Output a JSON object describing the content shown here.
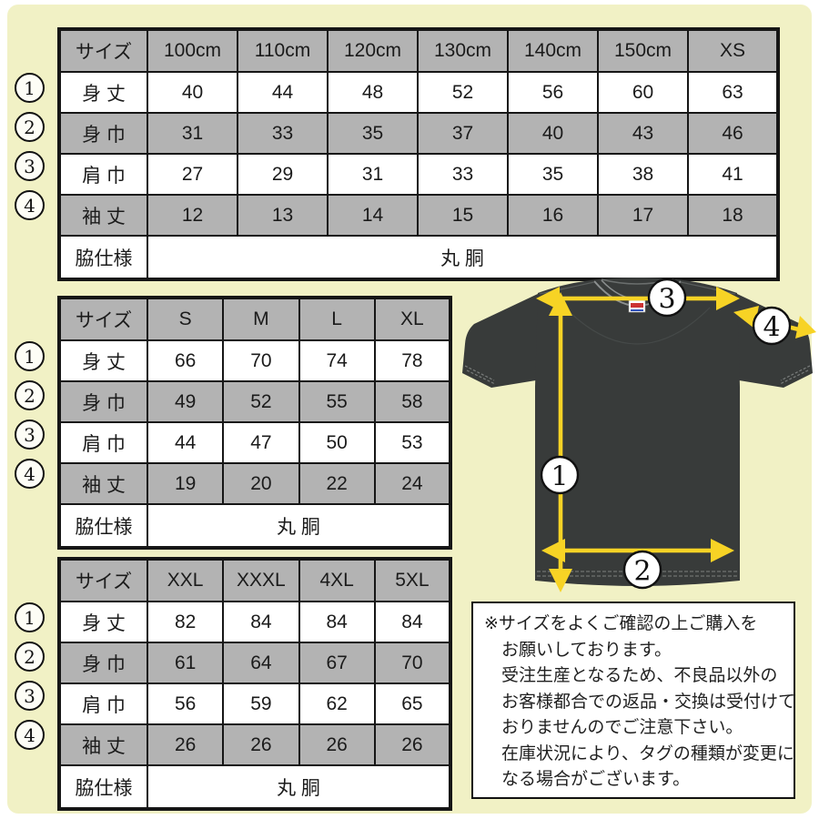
{
  "colors": {
    "background": "#f1f1c5",
    "header_gray": "#b3b3b3",
    "shirt_dark": "#383b3a",
    "arrow_yellow": "#f7d325",
    "tag_red": "#cc3333",
    "tag_blue": "#3355bb"
  },
  "tables": [
    {
      "name": "size-table-kids-xs",
      "header": [
        "サイズ",
        "100cm",
        "110cm",
        "120cm",
        "130cm",
        "140cm",
        "150cm",
        "XS"
      ],
      "rows": [
        {
          "marker": "1",
          "label": "身 丈",
          "values": [
            "40",
            "44",
            "48",
            "52",
            "56",
            "60",
            "63"
          ]
        },
        {
          "marker": "2",
          "label": "身 巾",
          "values": [
            "31",
            "33",
            "35",
            "37",
            "40",
            "43",
            "46"
          ]
        },
        {
          "marker": "3",
          "label": "肩 巾",
          "values": [
            "27",
            "29",
            "31",
            "33",
            "35",
            "38",
            "41"
          ]
        },
        {
          "marker": "4",
          "label": "袖 丈",
          "values": [
            "12",
            "13",
            "14",
            "15",
            "16",
            "17",
            "18"
          ]
        }
      ],
      "footer": {
        "label": "脇仕様",
        "value": "丸 胴"
      }
    },
    {
      "name": "size-table-s-xl",
      "header": [
        "サイズ",
        "S",
        "M",
        "L",
        "XL"
      ],
      "rows": [
        {
          "marker": "1",
          "label": "身 丈",
          "values": [
            "66",
            "70",
            "74",
            "78"
          ]
        },
        {
          "marker": "2",
          "label": "身 巾",
          "values": [
            "49",
            "52",
            "55",
            "58"
          ]
        },
        {
          "marker": "3",
          "label": "肩 巾",
          "values": [
            "44",
            "47",
            "50",
            "53"
          ]
        },
        {
          "marker": "4",
          "label": "袖 丈",
          "values": [
            "19",
            "20",
            "22",
            "24"
          ]
        }
      ],
      "footer": {
        "label": "脇仕様",
        "value": "丸 胴"
      }
    },
    {
      "name": "size-table-xxl-5xl",
      "header": [
        "サイズ",
        "XXL",
        "XXXL",
        "4XL",
        "5XL"
      ],
      "rows": [
        {
          "marker": "1",
          "label": "身 丈",
          "values": [
            "82",
            "84",
            "84",
            "84"
          ]
        },
        {
          "marker": "2",
          "label": "身 巾",
          "values": [
            "61",
            "64",
            "67",
            "70"
          ]
        },
        {
          "marker": "3",
          "label": "肩 巾",
          "values": [
            "56",
            "59",
            "62",
            "65"
          ]
        },
        {
          "marker": "4",
          "label": "袖 丈",
          "values": [
            "26",
            "26",
            "26",
            "26"
          ]
        }
      ],
      "footer": {
        "label": "脇仕様",
        "value": "丸 胴"
      }
    }
  ],
  "shirt": {
    "markers": [
      "1",
      "2",
      "3",
      "4"
    ],
    "tag_icon": "printstar-brand-tag"
  },
  "note": {
    "lines": [
      "※サイズをよくご確認の上ご購入を",
      "お願いしております。",
      "受注生産となるため、不良品以外の",
      "お客様都合での返品・交換は受付けて",
      "おりませんのでご注意下さい。",
      "在庫状況により、タグの種類が変更に",
      "なる場合がございます。"
    ]
  }
}
